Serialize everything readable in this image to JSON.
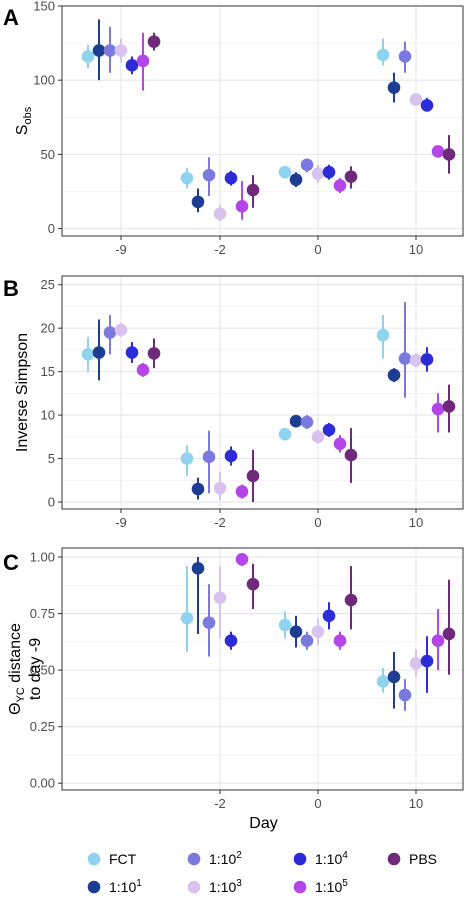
{
  "colors": {
    "FCT": "#8fd3ef",
    "1:10^1": "#1c3d91",
    "1:10^2": "#7b79e0",
    "1:10^3": "#d8c2f0",
    "1:10^4": "#2b2bd8",
    "1:10^5": "#b445e8",
    "PBS": "#6e2a78"
  },
  "chart_data": [
    {
      "panel": "A",
      "type": "scatter",
      "ylabel": "S_obs",
      "xlabel": "",
      "x_type": "categorical",
      "categories": [
        "-9",
        "-2",
        "0",
        "10"
      ],
      "ylim": [
        -5,
        150
      ],
      "yticks": [
        0,
        50,
        100,
        150
      ],
      "ytick_labels": [
        "0",
        "50",
        "100",
        "150"
      ],
      "grid": true,
      "series": [
        {
          "name": "FCT",
          "points": [
            {
              "x": "-9",
              "y": 116,
              "lo": 108,
              "hi": 124
            },
            {
              "x": "-2",
              "y": 34,
              "lo": 27,
              "hi": 41
            },
            {
              "x": "0",
              "y": 38,
              "lo": 34,
              "hi": 42
            },
            {
              "x": "10",
              "y": 117,
              "lo": 110,
              "hi": 128
            }
          ]
        },
        {
          "name": "1:10^1",
          "points": [
            {
              "x": "-9",
              "y": 120,
              "lo": 100,
              "hi": 141
            },
            {
              "x": "-2",
              "y": 18,
              "lo": 11,
              "hi": 27
            },
            {
              "x": "0",
              "y": 33,
              "lo": 28,
              "hi": 38
            },
            {
              "x": "10",
              "y": 95,
              "lo": 85,
              "hi": 105
            }
          ]
        },
        {
          "name": "1:10^2",
          "points": [
            {
              "x": "-9",
              "y": 120,
              "lo": 105,
              "hi": 136
            },
            {
              "x": "-2",
              "y": 36,
              "lo": 22,
              "hi": 48
            },
            {
              "x": "0",
              "y": 43,
              "lo": 38,
              "hi": 47
            },
            {
              "x": "10",
              "y": 116,
              "lo": 105,
              "hi": 126
            }
          ]
        },
        {
          "name": "1:10^3",
          "points": [
            {
              "x": "-9",
              "y": 120,
              "lo": 112,
              "hi": 128
            },
            {
              "x": "-2",
              "y": 10,
              "lo": 5,
              "hi": 16
            },
            {
              "x": "0",
              "y": 37,
              "lo": 31,
              "hi": 43
            },
            {
              "x": "10",
              "y": 87,
              "lo": 83,
              "hi": 91
            }
          ]
        },
        {
          "name": "1:10^4",
          "points": [
            {
              "x": "-9",
              "y": 110,
              "lo": 104,
              "hi": 116
            },
            {
              "x": "-2",
              "y": 34,
              "lo": 29,
              "hi": 39
            },
            {
              "x": "0",
              "y": 38,
              "lo": 33,
              "hi": 43
            },
            {
              "x": "10",
              "y": 83,
              "lo": 79,
              "hi": 88
            }
          ]
        },
        {
          "name": "1:10^5",
          "points": [
            {
              "x": "-9",
              "y": 113,
              "lo": 93,
              "hi": 132
            },
            {
              "x": "-2",
              "y": 15,
              "lo": 6,
              "hi": 32
            },
            {
              "x": "0",
              "y": 29,
              "lo": 24,
              "hi": 34
            },
            {
              "x": "10",
              "y": 52,
              "lo": 48,
              "hi": 56
            }
          ]
        },
        {
          "name": "PBS",
          "points": [
            {
              "x": "-9",
              "y": 126,
              "lo": 120,
              "hi": 132
            },
            {
              "x": "-2",
              "y": 26,
              "lo": 14,
              "hi": 36
            },
            {
              "x": "0",
              "y": 35,
              "lo": 27,
              "hi": 42
            },
            {
              "x": "10",
              "y": 50,
              "lo": 37,
              "hi": 63
            }
          ]
        }
      ]
    },
    {
      "panel": "B",
      "type": "scatter",
      "ylabel": "Inverse Simpson",
      "xlabel": "",
      "x_type": "categorical",
      "categories": [
        "-9",
        "-2",
        "0",
        "10"
      ],
      "ylim": [
        -0.8,
        26
      ],
      "yticks": [
        0,
        5,
        10,
        15,
        20,
        25
      ],
      "ytick_labels": [
        "0",
        "5",
        "10",
        "15",
        "20",
        "25"
      ],
      "grid": true,
      "series": [
        {
          "name": "FCT",
          "points": [
            {
              "x": "-9",
              "y": 17.0,
              "lo": 15.0,
              "hi": 19.0
            },
            {
              "x": "-2",
              "y": 5.0,
              "lo": 3.0,
              "hi": 6.5
            },
            {
              "x": "0",
              "y": 7.8,
              "lo": 7.2,
              "hi": 8.4
            },
            {
              "x": "10",
              "y": 19.2,
              "lo": 16.5,
              "hi": 21.5
            }
          ]
        },
        {
          "name": "1:10^1",
          "points": [
            {
              "x": "-9",
              "y": 17.2,
              "lo": 14.0,
              "hi": 21.0
            },
            {
              "x": "-2",
              "y": 1.5,
              "lo": 0.3,
              "hi": 2.8
            },
            {
              "x": "0",
              "y": 9.3,
              "lo": 8.7,
              "hi": 9.9
            },
            {
              "x": "10",
              "y": 14.6,
              "lo": 13.8,
              "hi": 15.4
            }
          ]
        },
        {
          "name": "1:10^2",
          "points": [
            {
              "x": "-9",
              "y": 19.5,
              "lo": 17.0,
              "hi": 21.5
            },
            {
              "x": "-2",
              "y": 5.2,
              "lo": 1.0,
              "hi": 8.2
            },
            {
              "x": "0",
              "y": 9.2,
              "lo": 8.4,
              "hi": 10.0
            },
            {
              "x": "10",
              "y": 16.5,
              "lo": 12.0,
              "hi": 23.0
            }
          ]
        },
        {
          "name": "1:10^3",
          "points": [
            {
              "x": "-9",
              "y": 19.8,
              "lo": 19.0,
              "hi": 20.6
            },
            {
              "x": "-2",
              "y": 1.6,
              "lo": 0.2,
              "hi": 3.5
            },
            {
              "x": "0",
              "y": 7.5,
              "lo": 6.7,
              "hi": 8.3
            },
            {
              "x": "10",
              "y": 16.3,
              "lo": 15.5,
              "hi": 17.1
            }
          ]
        },
        {
          "name": "1:10^4",
          "points": [
            {
              "x": "-9",
              "y": 17.2,
              "lo": 16.0,
              "hi": 18.4
            },
            {
              "x": "-2",
              "y": 5.3,
              "lo": 4.2,
              "hi": 6.4
            },
            {
              "x": "0",
              "y": 8.3,
              "lo": 7.5,
              "hi": 9.1
            },
            {
              "x": "10",
              "y": 16.4,
              "lo": 15.0,
              "hi": 17.8
            }
          ]
        },
        {
          "name": "1:10^5",
          "points": [
            {
              "x": "-9",
              "y": 15.2,
              "lo": 14.4,
              "hi": 16.0
            },
            {
              "x": "-2",
              "y": 1.2,
              "lo": 0.4,
              "hi": 2.0
            },
            {
              "x": "0",
              "y": 6.7,
              "lo": 5.7,
              "hi": 7.7
            },
            {
              "x": "10",
              "y": 10.7,
              "lo": 8.0,
              "hi": 12.5
            }
          ]
        },
        {
          "name": "PBS",
          "points": [
            {
              "x": "-9",
              "y": 17.1,
              "lo": 15.4,
              "hi": 18.8
            },
            {
              "x": "-2",
              "y": 3.0,
              "lo": 0.0,
              "hi": 6.0
            },
            {
              "x": "0",
              "y": 5.4,
              "lo": 2.2,
              "hi": 8.5
            },
            {
              "x": "10",
              "y": 11.0,
              "lo": 8.0,
              "hi": 13.5
            }
          ]
        }
      ]
    },
    {
      "panel": "C",
      "type": "scatter",
      "ylabel": "ΘYC distance to day -9",
      "xlabel": "Day",
      "x_type": "categorical",
      "categories": [
        "-2",
        "0",
        "10"
      ],
      "ylim": [
        -0.03,
        1.04
      ],
      "yticks": [
        0.0,
        0.25,
        0.5,
        0.75,
        1.0
      ],
      "ytick_labels": [
        "0.00",
        "0.25",
        "0.50",
        "0.75",
        "1.00"
      ],
      "grid": true,
      "series": [
        {
          "name": "FCT",
          "points": [
            {
              "x": "-2",
              "y": 0.73,
              "lo": 0.58,
              "hi": 0.96
            },
            {
              "x": "0",
              "y": 0.7,
              "lo": 0.64,
              "hi": 0.76
            },
            {
              "x": "10",
              "y": 0.45,
              "lo": 0.4,
              "hi": 0.51
            }
          ]
        },
        {
          "name": "1:10^1",
          "points": [
            {
              "x": "-2",
              "y": 0.95,
              "lo": 0.66,
              "hi": 1.0
            },
            {
              "x": "0",
              "y": 0.67,
              "lo": 0.6,
              "hi": 0.74
            },
            {
              "x": "10",
              "y": 0.47,
              "lo": 0.33,
              "hi": 0.58
            }
          ]
        },
        {
          "name": "1:10^2",
          "points": [
            {
              "x": "-2",
              "y": 0.71,
              "lo": 0.56,
              "hi": 0.88
            },
            {
              "x": "0",
              "y": 0.63,
              "lo": 0.59,
              "hi": 0.67
            },
            {
              "x": "10",
              "y": 0.39,
              "lo": 0.32,
              "hi": 0.46
            }
          ]
        },
        {
          "name": "1:10^3",
          "points": [
            {
              "x": "-2",
              "y": 0.82,
              "lo": 0.64,
              "hi": 0.96
            },
            {
              "x": "0",
              "y": 0.67,
              "lo": 0.61,
              "hi": 0.73
            },
            {
              "x": "10",
              "y": 0.53,
              "lo": 0.47,
              "hi": 0.59
            }
          ]
        },
        {
          "name": "1:10^4",
          "points": [
            {
              "x": "-2",
              "y": 0.63,
              "lo": 0.59,
              "hi": 0.67
            },
            {
              "x": "0",
              "y": 0.74,
              "lo": 0.68,
              "hi": 0.8
            },
            {
              "x": "10",
              "y": 0.54,
              "lo": 0.4,
              "hi": 0.65
            }
          ]
        },
        {
          "name": "1:10^5",
          "points": [
            {
              "x": "-2",
              "y": 0.99,
              "lo": 0.96,
              "hi": 1.0
            },
            {
              "x": "0",
              "y": 0.63,
              "lo": 0.59,
              "hi": 0.67
            },
            {
              "x": "10",
              "y": 0.63,
              "lo": 0.5,
              "hi": 0.77
            }
          ]
        },
        {
          "name": "PBS",
          "points": [
            {
              "x": "-2",
              "y": 0.88,
              "lo": 0.77,
              "hi": 0.97
            },
            {
              "x": "0",
              "y": 0.81,
              "lo": 0.68,
              "hi": 0.96
            },
            {
              "x": "10",
              "y": 0.66,
              "lo": 0.48,
              "hi": 0.9
            }
          ]
        }
      ]
    }
  ],
  "legend": {
    "position": "bottom",
    "entries": [
      {
        "key": "FCT",
        "base": "FCT",
        "sup": ""
      },
      {
        "key": "1:10^2",
        "base": "1:10",
        "sup": "2"
      },
      {
        "key": "1:10^4",
        "base": "1:10",
        "sup": "4"
      },
      {
        "key": "PBS",
        "base": "PBS",
        "sup": ""
      },
      {
        "key": "1:10^1",
        "base": "1:10",
        "sup": "1"
      },
      {
        "key": "1:10^3",
        "base": "1:10",
        "sup": "3"
      },
      {
        "key": "1:10^5",
        "base": "1:10",
        "sup": "5"
      }
    ]
  }
}
